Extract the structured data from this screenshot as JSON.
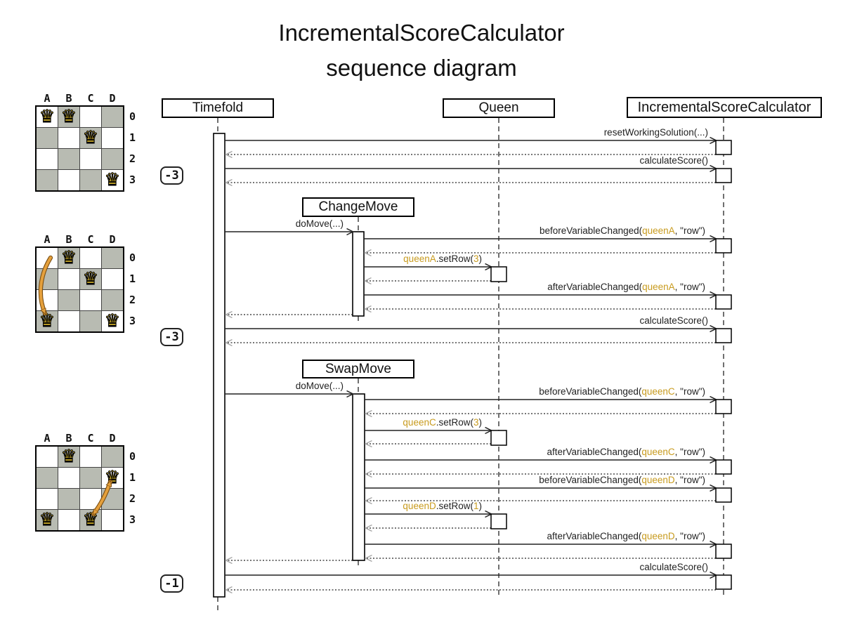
{
  "title": {
    "line1": "IncrementalScoreCalculator",
    "line2": "sequence diagram"
  },
  "lifelines": [
    {
      "label": "Timefold"
    },
    {
      "label": "Queen"
    },
    {
      "label": "IncrementalScoreCalculator"
    }
  ],
  "frames": [
    {
      "label": "ChangeMove"
    },
    {
      "label": "SwapMove"
    }
  ],
  "badges": [
    {
      "value": "-3"
    },
    {
      "value": "-3"
    },
    {
      "value": "-1"
    }
  ],
  "messages": [
    {
      "name": "reset-working-solution",
      "parts": [
        {
          "t": "resetWorkingSolution(...)"
        }
      ]
    },
    {
      "name": "calculate-score-1",
      "parts": [
        {
          "t": "calculateScore()"
        }
      ]
    },
    {
      "name": "do-move-1",
      "parts": [
        {
          "t": "doMove(...)"
        }
      ]
    },
    {
      "name": "before-variable-changed-queen-a",
      "parts": [
        {
          "t": "beforeVariableChanged("
        },
        {
          "t": "queenA",
          "accent": true
        },
        {
          "t": ", \"row\")"
        }
      ]
    },
    {
      "name": "queen-a-set-row",
      "parts": [
        {
          "t": "queenA",
          "accent": true
        },
        {
          "t": ".setRow("
        },
        {
          "t": "3",
          "accent": true
        },
        {
          "t": ")"
        }
      ]
    },
    {
      "name": "after-variable-changed-queen-a",
      "parts": [
        {
          "t": "afterVariableChanged("
        },
        {
          "t": "queenA",
          "accent": true
        },
        {
          "t": ", \"row\")"
        }
      ]
    },
    {
      "name": "calculate-score-2",
      "parts": [
        {
          "t": "calculateScore()"
        }
      ]
    },
    {
      "name": "do-move-2",
      "parts": [
        {
          "t": "doMove(...)"
        }
      ]
    },
    {
      "name": "before-variable-changed-queen-c",
      "parts": [
        {
          "t": "beforeVariableChanged("
        },
        {
          "t": "queenC",
          "accent": true
        },
        {
          "t": ", \"row\")"
        }
      ]
    },
    {
      "name": "queen-c-set-row",
      "parts": [
        {
          "t": "queenC",
          "accent": true
        },
        {
          "t": ".setRow("
        },
        {
          "t": "3",
          "accent": true
        },
        {
          "t": ")"
        }
      ]
    },
    {
      "name": "after-variable-changed-queen-c",
      "parts": [
        {
          "t": "afterVariableChanged("
        },
        {
          "t": "queenC",
          "accent": true
        },
        {
          "t": ", \"row\")"
        }
      ]
    },
    {
      "name": "before-variable-changed-queen-d",
      "parts": [
        {
          "t": "beforeVariableChanged("
        },
        {
          "t": "queenD",
          "accent": true
        },
        {
          "t": ", \"row\")"
        }
      ]
    },
    {
      "name": "queen-d-set-row",
      "parts": [
        {
          "t": "queenD",
          "accent": true
        },
        {
          "t": ".setRow("
        },
        {
          "t": "1",
          "accent": true
        },
        {
          "t": ")"
        }
      ]
    },
    {
      "name": "after-variable-changed-queen-d",
      "parts": [
        {
          "t": "afterVariableChanged("
        },
        {
          "t": "queenD",
          "accent": true
        },
        {
          "t": ", \"row\")"
        }
      ]
    },
    {
      "name": "calculate-score-3",
      "parts": [
        {
          "t": "calculateScore()"
        }
      ]
    }
  ],
  "boards": [
    {
      "columns": [
        "A",
        "B",
        "C",
        "D"
      ],
      "rows": [
        "0",
        "1",
        "2",
        "3"
      ],
      "queens": [
        "A0",
        "B0",
        "C1",
        "D3"
      ]
    },
    {
      "columns": [
        "A",
        "B",
        "C",
        "D"
      ],
      "rows": [
        "0",
        "1",
        "2",
        "3"
      ],
      "queens": [
        "B0",
        "C1",
        "A3",
        "D3"
      ],
      "move_arrow": {
        "piece": "queenA",
        "from": "A0",
        "to": "A3",
        "double": false
      }
    },
    {
      "columns": [
        "A",
        "B",
        "C",
        "D"
      ],
      "rows": [
        "0",
        "1",
        "2",
        "3"
      ],
      "queens": [
        "B0",
        "D1",
        "A3",
        "C3"
      ],
      "move_arrow": {
        "swap": "queenC-queenD",
        "from": "D1",
        "to": "C3",
        "double": true
      }
    }
  ],
  "colors": {
    "accent": "#C89B1E",
    "board_gray": "#b8bbb2",
    "queen_gold": "#f2cb30",
    "move_arrow": "#E5A03C",
    "move_arrow_outline": "#7a4e12"
  }
}
